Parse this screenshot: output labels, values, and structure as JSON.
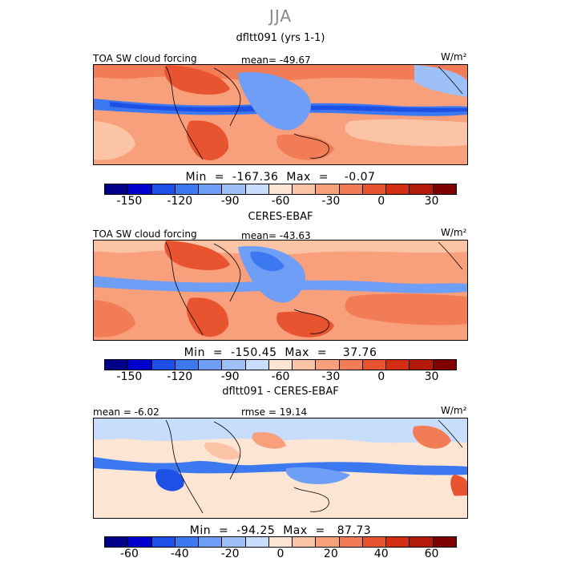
{
  "season": "JJA",
  "colors": [
    "#00008b",
    "#0000cd",
    "#1e50e6",
    "#3c78f0",
    "#6e9ef5",
    "#9ec0f8",
    "#c8dcfb",
    "#fde5d3",
    "#fbc4a6",
    "#f8a07c",
    "#f27c55",
    "#e85430",
    "#d22e14",
    "#b41a0a",
    "#800000"
  ],
  "chart_data": [
    {
      "type": "heatmap",
      "title": "dfltt091 (yrs 1-1)",
      "left_label": "TOA SW cloud forcing",
      "center_label": "mean=  -49.67",
      "units": "W/m²",
      "min_label": "Min  =  -167.36",
      "max_label": "Max  =    -0.07",
      "min": -167.36,
      "max": -0.07,
      "mean": -49.67,
      "colorbar_range": [
        -165,
        45
      ],
      "colorbar_ticks": [
        "-150",
        "-120",
        "-90",
        "-60",
        "-30",
        "0",
        "30"
      ],
      "tick_values": [
        -150,
        -120,
        -90,
        -60,
        -30,
        0,
        30
      ]
    },
    {
      "type": "heatmap",
      "title": "CERES-EBAF",
      "left_label": "TOA SW cloud forcing",
      "center_label": "mean=  -43.63",
      "units": "W/m²",
      "min_label": "Min  =  -150.45",
      "max_label": "Max  =    37.76",
      "min": -150.45,
      "max": 37.76,
      "mean": -43.63,
      "colorbar_range": [
        -165,
        45
      ],
      "colorbar_ticks": [
        "-150",
        "-120",
        "-90",
        "-60",
        "-30",
        "0",
        "30"
      ],
      "tick_values": [
        -150,
        -120,
        -90,
        -60,
        -30,
        0,
        30
      ]
    },
    {
      "type": "heatmap",
      "title": "dfltt091 - CERES-EBAF",
      "left_label": "mean =   -6.02",
      "center_label": "rmse =   19.14",
      "units": "W/m²",
      "min_label": "Min  =  -94.25",
      "max_label": "Max  =   87.73",
      "min": -94.25,
      "max": 87.73,
      "mean": -6.02,
      "rmse": 19.14,
      "colorbar_range": [
        -70,
        70
      ],
      "colorbar_ticks": [
        "-60",
        "-40",
        "-20",
        "0",
        "20",
        "40",
        "60"
      ],
      "tick_values": [
        -60,
        -40,
        -20,
        0,
        20,
        40,
        60
      ]
    }
  ]
}
